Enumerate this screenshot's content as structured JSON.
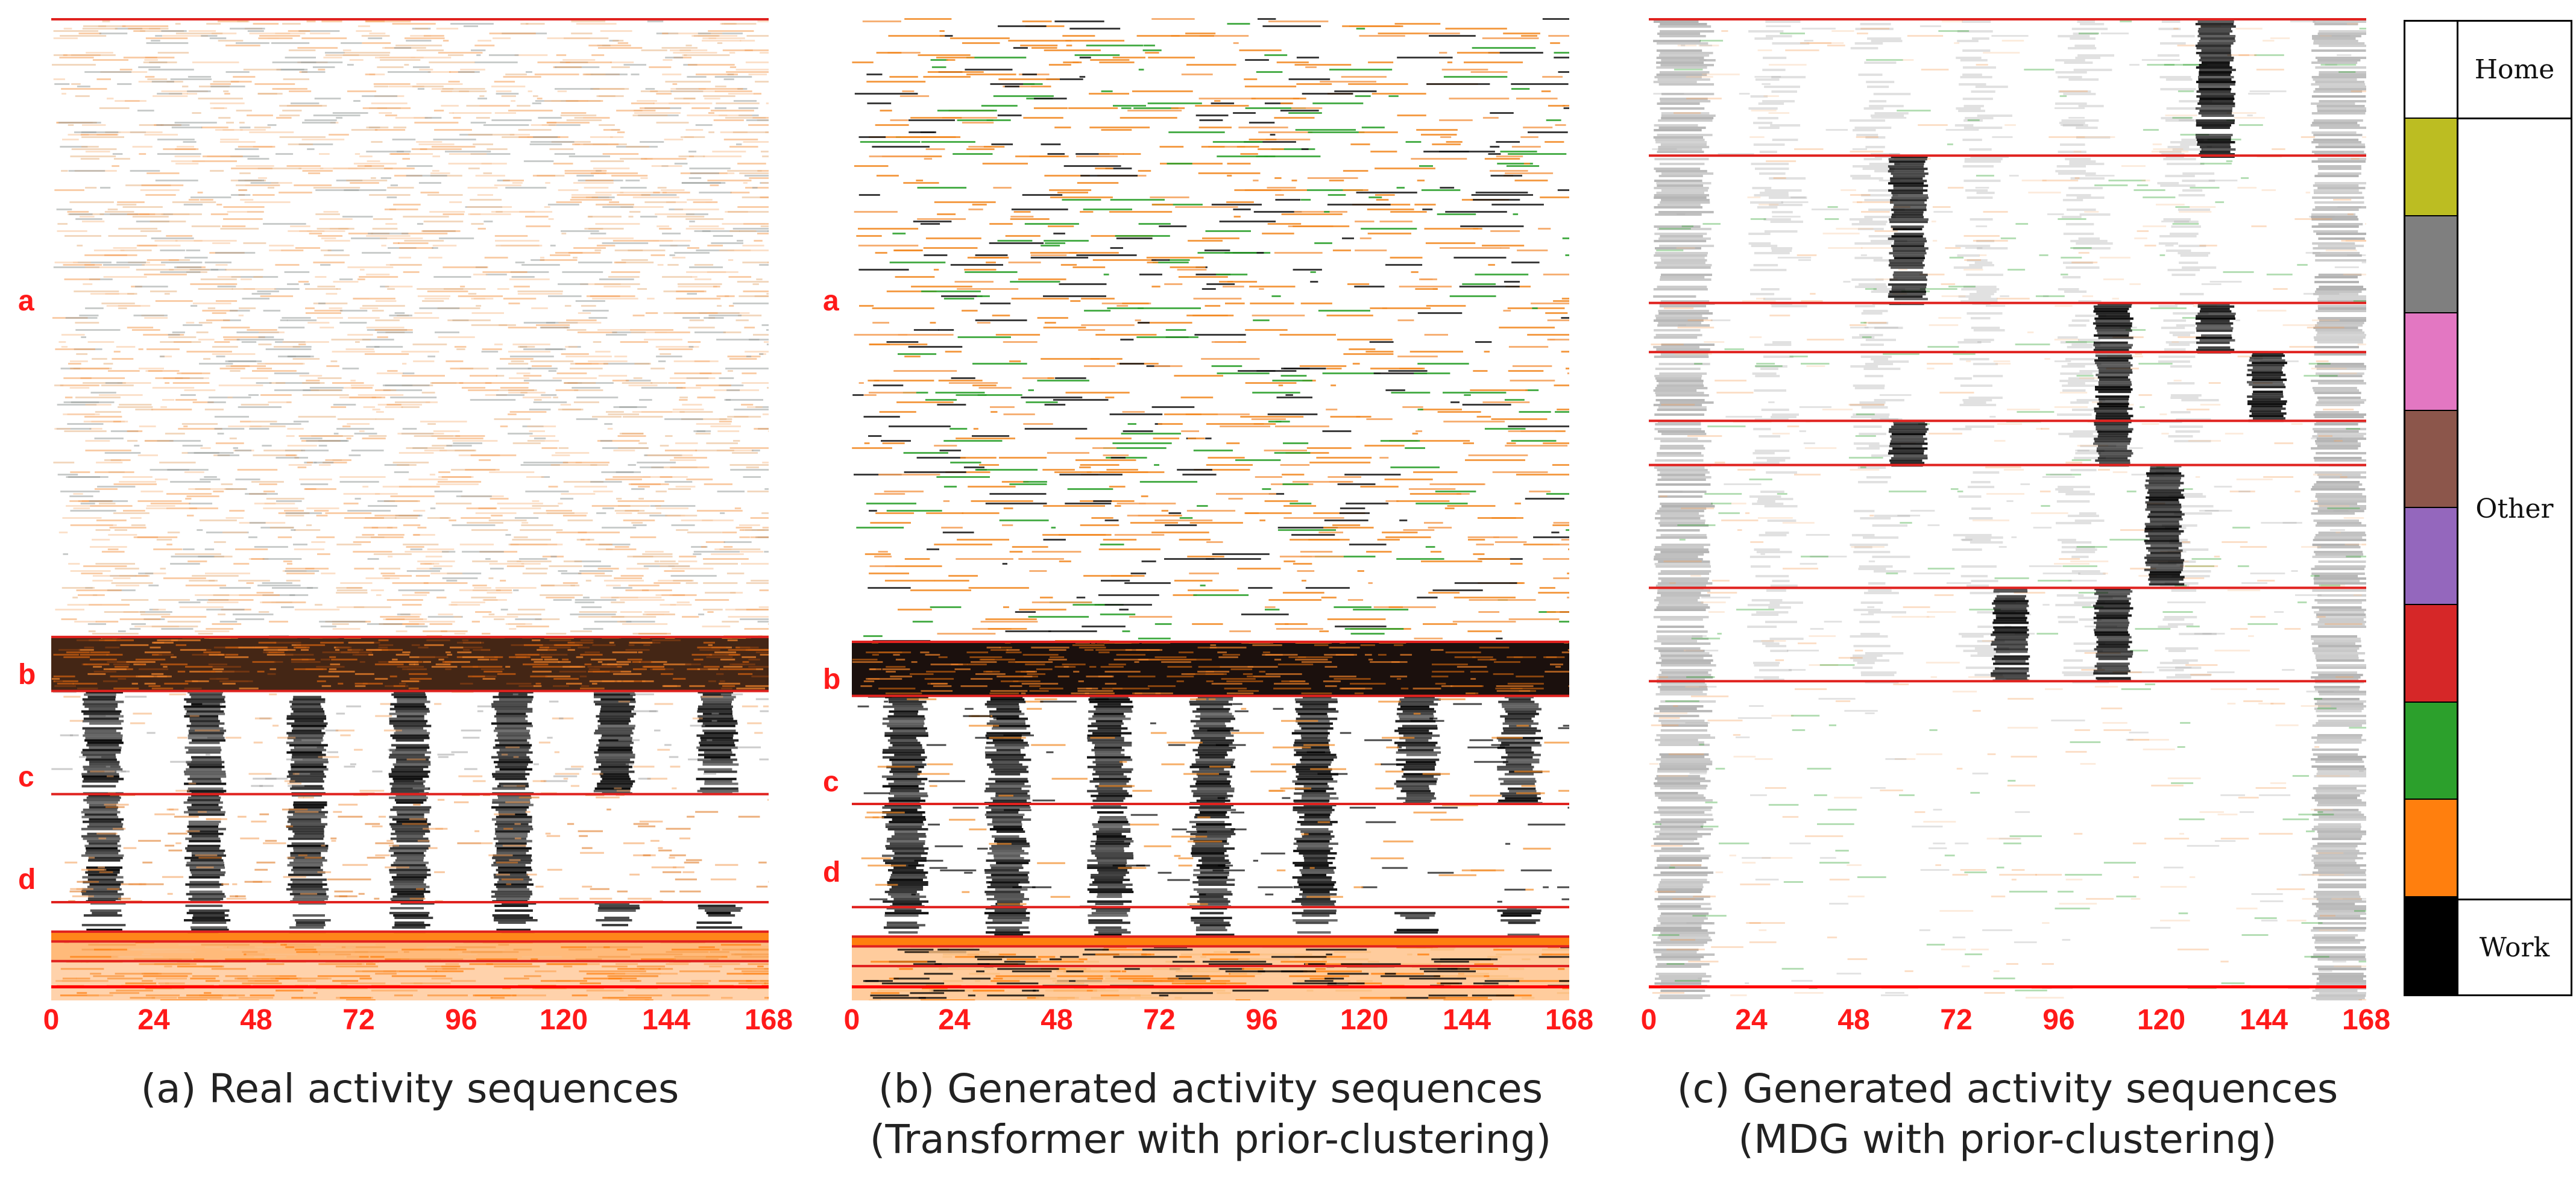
{
  "panels": [
    {
      "caption_lines": [
        "(a) Real activity sequences"
      ],
      "row_labels": [
        "a",
        "b",
        "c",
        "d"
      ]
    },
    {
      "caption_lines": [
        "(b) Generated activity sequences",
        "(Transformer with prior-clustering)"
      ],
      "row_labels": [
        "a",
        "b",
        "c",
        "d"
      ]
    },
    {
      "caption_lines": [
        "(c) Generated activity sequences",
        "(MDG with prior-clustering)"
      ],
      "row_labels": []
    }
  ],
  "x_ticks": [
    "0",
    "24",
    "48",
    "72",
    "96",
    "120",
    "144",
    "168"
  ],
  "legend": {
    "groups": [
      {
        "label": "Home"
      },
      {
        "label": "Other"
      },
      {
        "label": "Work"
      }
    ],
    "swatches": [
      {
        "color": "#ffffff",
        "category": "Home"
      },
      {
        "color": "#bcbd22",
        "category": "Other"
      },
      {
        "color": "#7f7f7f",
        "category": "Other"
      },
      {
        "color": "#e377c2",
        "category": "Other"
      },
      {
        "color": "#8c564b",
        "category": "Other"
      },
      {
        "color": "#9467bd",
        "category": "Other"
      },
      {
        "color": "#d62728",
        "category": "Other"
      },
      {
        "color": "#2ca02c",
        "category": "Other"
      },
      {
        "color": "#ff7f0e",
        "category": "Other"
      },
      {
        "color": "#000000",
        "category": "Work"
      }
    ]
  },
  "chart_data": [
    {
      "type": "heatmap",
      "x_range": [
        0,
        168
      ],
      "x_ticks": [
        0,
        24,
        48,
        72,
        96,
        120,
        144,
        168
      ],
      "cluster_boundaries": [
        0,
        0.63,
        0.685,
        0.79,
        0.9,
        0.93,
        0.94,
        0.96,
        1.0
      ],
      "clusters": [
        {
          "label": "a",
          "rows": [
            0,
            0.63
          ],
          "pattern": "mostly Home with sparse Other (orange) activity"
        },
        {
          "label": "",
          "rows": [
            0.63,
            0.685
          ],
          "pattern": "dense Work with orange mix across all days"
        },
        {
          "label": "b",
          "rows": [
            0.685,
            0.79
          ],
          "pattern": "Work blocks on 7 days"
        },
        {
          "label": "c",
          "rows": [
            0.79,
            0.9
          ],
          "pattern": "Work blocks on 5 weekdays"
        },
        {
          "label": "d",
          "rows": [
            0.9,
            0.93
          ],
          "pattern": "Work blocks on weekdays, lighter"
        },
        {
          "label": "",
          "rows": [
            0.93,
            1.0
          ],
          "pattern": "dense Other (orange)"
        }
      ]
    },
    {
      "type": "heatmap",
      "x_range": [
        0,
        168
      ],
      "x_ticks": [
        0,
        24,
        48,
        72,
        96,
        120,
        144,
        168
      ],
      "cluster_boundaries": [
        0,
        0.635,
        0.69,
        0.8,
        0.905,
        0.935,
        0.945,
        0.965,
        1.0
      ],
      "clusters": [
        {
          "label": "a",
          "rows": [
            0,
            0.635
          ],
          "pattern": "sparse Other (orange) streaks on Home"
        },
        {
          "label": "",
          "rows": [
            0.635,
            0.69
          ],
          "pattern": "dense Work with orange mix"
        },
        {
          "label": "b",
          "rows": [
            0.69,
            0.8
          ],
          "pattern": "Work blocks on 7 days"
        },
        {
          "label": "c",
          "rows": [
            0.8,
            0.905
          ],
          "pattern": "Work blocks on 5 weekdays"
        },
        {
          "label": "d",
          "rows": [
            0.905,
            0.935
          ],
          "pattern": "Work blocks on weekdays"
        },
        {
          "label": "",
          "rows": [
            0.935,
            1.0
          ],
          "pattern": "dense Other (orange)"
        }
      ]
    },
    {
      "type": "heatmap",
      "x_range": [
        0,
        168
      ],
      "x_ticks": [
        0,
        24,
        48,
        72,
        96,
        120,
        144,
        168
      ],
      "cluster_boundaries": [
        0,
        0.14,
        0.29,
        0.34,
        0.41,
        0.455,
        0.58,
        0.675,
        1.0
      ],
      "clusters": [
        {
          "rows": [
            0,
            0.14
          ],
          "pattern": "single Work block on day 6"
        },
        {
          "rows": [
            0.14,
            0.29
          ],
          "pattern": "single Work block on day 2"
        },
        {
          "rows": [
            0.29,
            0.34
          ],
          "pattern": "Work blocks on days 4 and 6"
        },
        {
          "rows": [
            0.34,
            0.41
          ],
          "pattern": "Work blocks on days 4 and 5"
        },
        {
          "rows": [
            0.41,
            0.455
          ],
          "pattern": "Work blocks on days 2 and 4"
        },
        {
          "rows": [
            0.455,
            0.58
          ],
          "pattern": "single Work block on day 5"
        },
        {
          "rows": [
            0.58,
            0.675
          ],
          "pattern": "Work blocks on days 3 and 4"
        },
        {
          "rows": [
            0.675,
            1.0
          ],
          "pattern": "mostly Home with grey daily stripes"
        }
      ]
    }
  ]
}
